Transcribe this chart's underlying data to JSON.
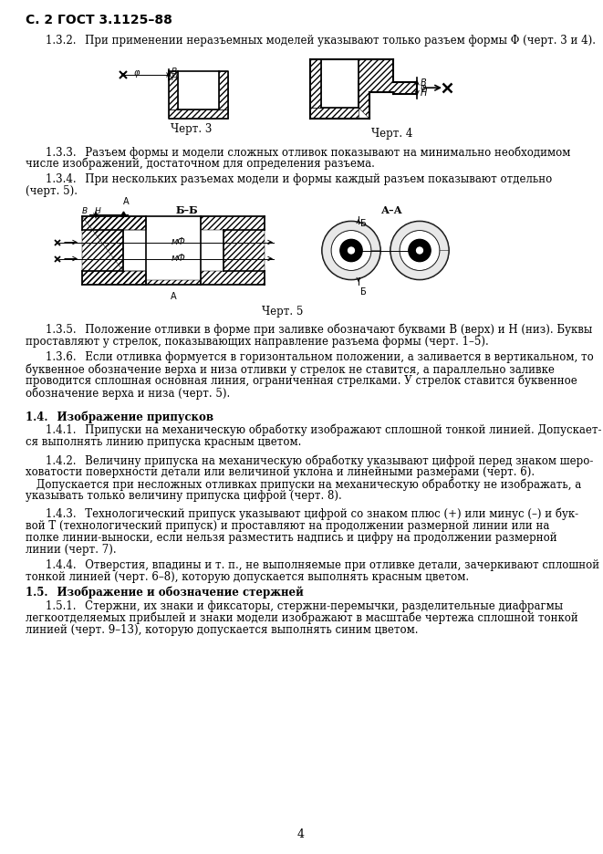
{
  "title": "С. 2 ГОСТ 3.1125–88",
  "page_num": "4",
  "bg": "#ffffff",
  "para_132": "1.3.2.  При применении неразъемных моделей указывают только разъем формы Φ (черт. 3 и 4).",
  "chert3_caption": "Черт. 3",
  "chert4_caption": "Черт. 4",
  "chert5_caption": "Черт. 5",
  "p133_l1": "1.3.3.  Разъем формы и модели сложных отливок показывают на минимально необходимом",
  "p133_l2": "числе изображений, достаточном для определения разъема.",
  "p134_l1": "1.3.4.  При нескольких разъемах модели и формы каждый разъем показывают отдельно",
  "p134_l2": "(черт. 5).",
  "p135_l1": "1.3.5.  Положение отливки в форме при заливке обозначают буквами B (верх) и Н (низ). Буквы",
  "p135_l2": "проставляют у стрелок, показывающих направление разъема формы (черт. 1–5).",
  "p136_l1": "1.3.6.  Если отливка формуется в горизонтальном положении, а заливается в вертикальном, то",
  "p136_l2": "буквенное обозначение верха и низа отливки у стрелок не ставится, а параллельно заливке",
  "p136_l3": "проводится сплошная основная линия, ограниченная стрелками. У стрелок ставится буквенное",
  "p136_l4": "обозначение верха и низа (черт. 5).",
  "s14": "1.4.  Изображение припусков",
  "p141_l1": "1.4.1.  Припуски на механическую обработку изображают сплошной тонкой линией. Допускает-",
  "p141_l2": "ся выполнять линию припуска красным цветом.",
  "p142_l1": "1.4.2.  Величину припуска на механическую обработку указывают цифрой перед знаком шеро-",
  "p142_l2": "ховатости поверхности детали или величиной уклона и линейными размерами (черт. 6).",
  "p142_l3": "  Допускается при несложных отливках припуски на механическую обработку не изображать, а",
  "p142_l4": "указывать только величину припуска цифрой (черт. 8).",
  "p143_l1": "1.4.3.  Технологический припуск указывают цифрой со знаком плюс (+) или минус (–) и бук-",
  "p143_l2": "вой Т (технологический припуск) и проставляют на продолжении размерной линии или на",
  "p143_l3": "полке линии-выноски, если нельзя разместить надпись и цифру на продолжении размерной",
  "p143_l4": "линии (черт. 7).",
  "p144_l1": "1.4.4.  Отверстия, впадины и т. п., не выполняемые при отливке детали, зачеркивают сплошной",
  "p144_l2": "тонкой линией (черт. 6–8), которую допускается выполнять красным цветом.",
  "s15": "1.5.  Изображение и обозначение стержней",
  "p151_l1": "1.5.1.  Стержни, их знаки и фиксаторы, стержни-перемычки, разделительные диафрагмы",
  "p151_l2": "легкоотделяемых прибылей и знаки модели изображают в масштабе чертежа сплошной тонкой",
  "p151_l3": "линией (черт. 9–13), которую допускается выполнять синим цветом."
}
